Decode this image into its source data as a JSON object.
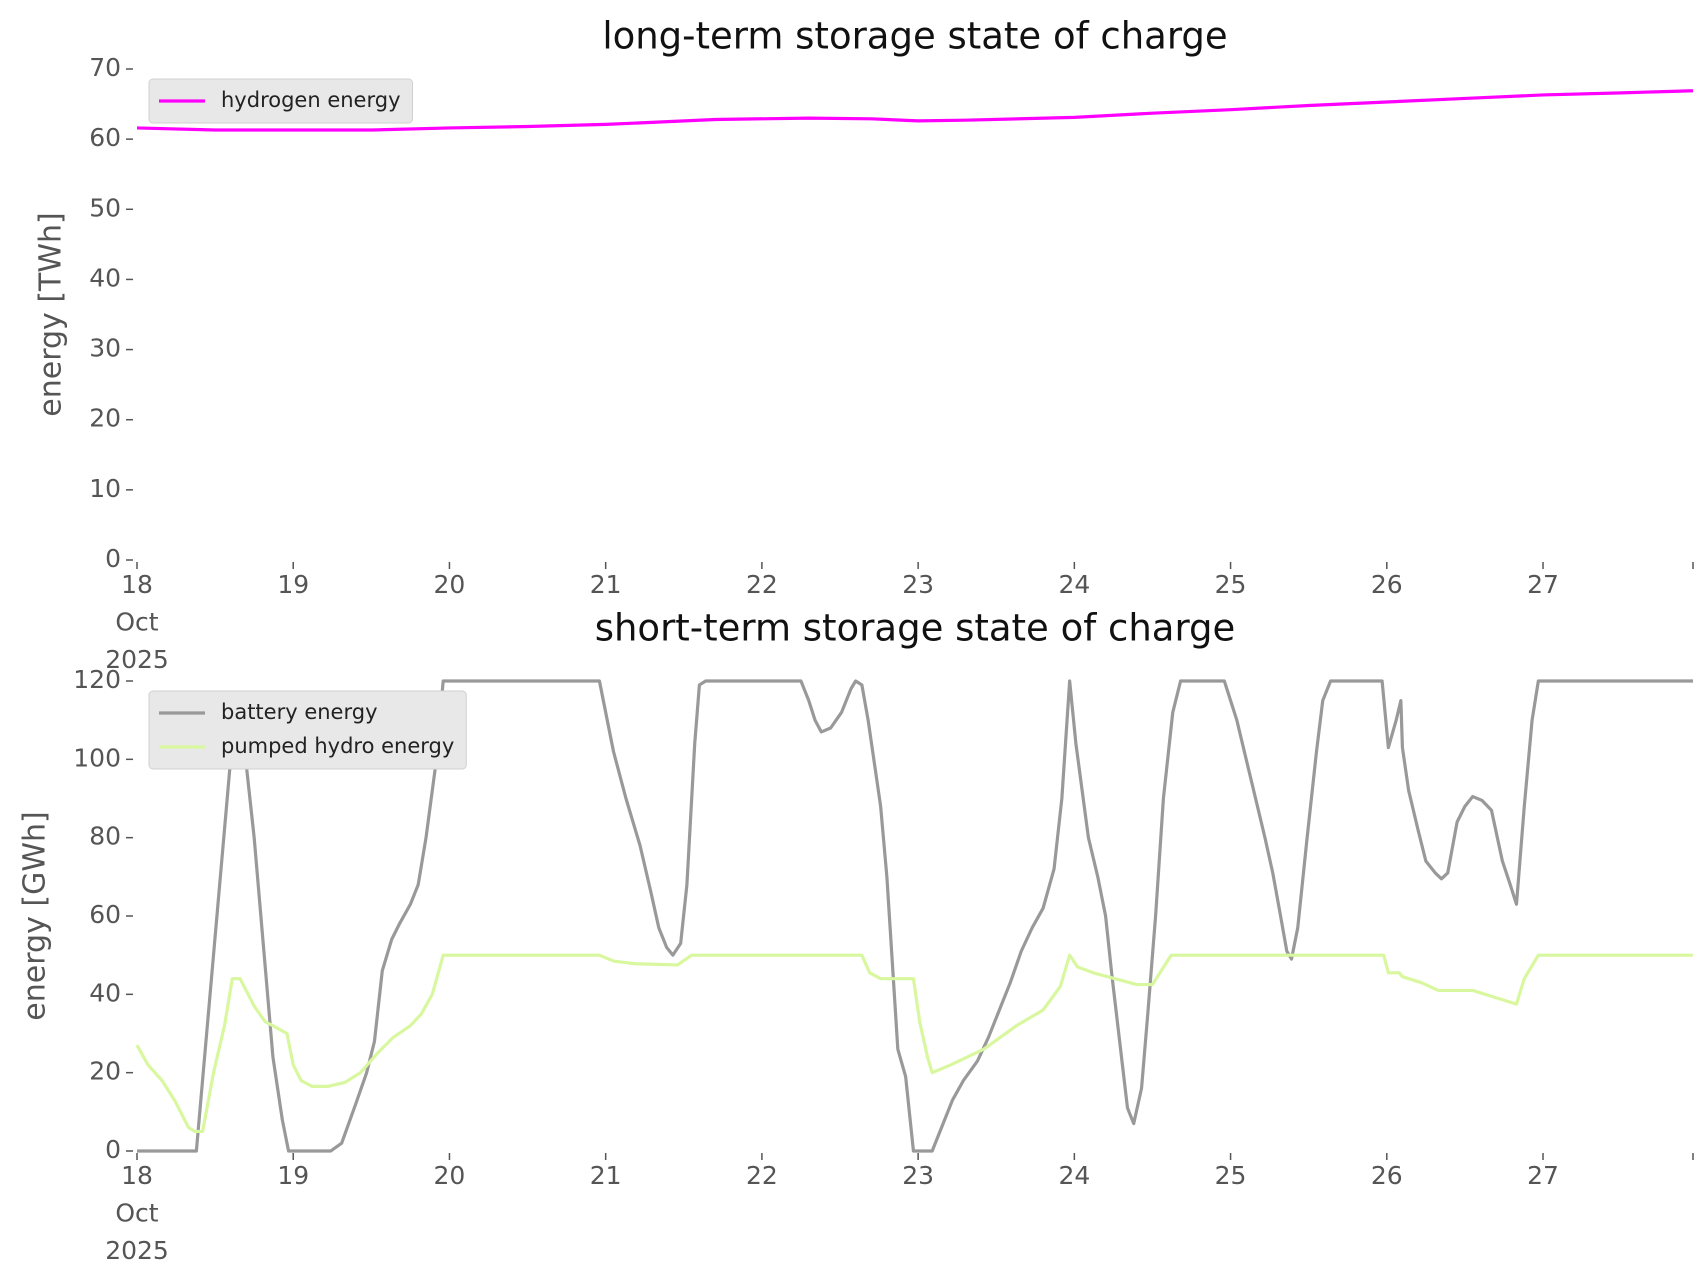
{
  "chart_data": [
    {
      "type": "line",
      "title": "long-term storage state of charge",
      "ylabel": "energy [TWh]",
      "xlim": [
        18,
        27.96
      ],
      "ylim": [
        0,
        70
      ],
      "xticks": [
        {
          "value": 18,
          "label": "18\nOct\n2025"
        },
        19,
        20,
        21,
        22,
        23,
        24,
        25,
        26,
        27
      ],
      "yticks": [
        0,
        10,
        20,
        30,
        40,
        50,
        60,
        70
      ],
      "legend": "upper left",
      "series": [
        {
          "name": "hydrogen energy",
          "color": "#ff00ff",
          "x": [
            18,
            18.5,
            19,
            19.5,
            20,
            20.5,
            21,
            21.4,
            21.7,
            22.3,
            22.7,
            23,
            23.3,
            24,
            24.5,
            25,
            25.5,
            26,
            26.5,
            27,
            27.5,
            27.96
          ],
          "values": [
            61.6,
            61.3,
            61.3,
            61.3,
            61.6,
            61.8,
            62.1,
            62.5,
            62.8,
            63.0,
            62.9,
            62.6,
            62.7,
            63.1,
            63.7,
            64.2,
            64.8,
            65.3,
            65.8,
            66.3,
            66.6,
            66.9
          ]
        }
      ]
    },
    {
      "type": "line",
      "title": "short-term storage state of charge",
      "ylabel": "energy [GWh]",
      "xlim": [
        18,
        27.96
      ],
      "ylim": [
        0,
        120
      ],
      "xticks": [
        {
          "value": 18,
          "label": "18\nOct\n2025"
        },
        19,
        20,
        21,
        22,
        23,
        24,
        25,
        26,
        27
      ],
      "yticks": [
        0,
        20,
        40,
        60,
        80,
        100,
        120
      ],
      "legend": "upper left",
      "series": [
        {
          "name": "battery energy",
          "color": "#999999",
          "x": [
            18,
            18.38,
            18.63,
            18.66,
            18.75,
            18.87,
            18.93,
            18.97,
            19.24,
            19.31,
            19.4,
            19.47,
            19.52,
            19.57,
            19.63,
            19.68,
            19.75,
            19.8,
            19.85,
            19.91,
            19.96,
            20.96,
            21.05,
            21.13,
            21.22,
            21.29,
            21.34,
            21.39,
            21.43,
            21.48,
            21.52,
            21.57,
            21.6,
            21.64,
            22.25,
            22.3,
            22.34,
            22.38,
            22.44,
            22.51,
            22.57,
            22.6,
            22.64,
            22.68,
            22.76,
            22.8,
            22.87,
            22.92,
            22.97,
            23.09,
            23.15,
            23.22,
            23.29,
            23.38,
            23.45,
            23.52,
            23.59,
            23.66,
            23.73,
            23.8,
            23.87,
            23.92,
            23.97,
            24.01,
            24.05,
            24.09,
            24.15,
            24.2,
            24.24,
            24.29,
            24.34,
            24.38,
            24.43,
            24.47,
            24.52,
            24.57,
            24.63,
            24.68,
            24.96,
            25.04,
            25.13,
            25.22,
            25.27,
            25.32,
            25.36,
            25.39,
            25.43,
            25.49,
            25.55,
            25.59,
            25.64,
            25.97,
            26.01,
            26.06,
            26.09,
            26.1,
            26.14,
            26.2,
            26.25,
            26.31,
            26.35,
            26.39,
            26.45,
            26.5,
            26.55,
            26.61,
            26.67,
            26.74,
            26.79,
            26.83,
            26.88,
            26.93,
            26.97,
            27.96
          ],
          "values": [
            0,
            0,
            114,
            113,
            80,
            24,
            8,
            0,
            0,
            2,
            12,
            20,
            28,
            46,
            54,
            58,
            63,
            68,
            80,
            98,
            120,
            120,
            102,
            90,
            78,
            66,
            57,
            52,
            50,
            53,
            68,
            104,
            119,
            120,
            120,
            115,
            110,
            107,
            108,
            112,
            118,
            120,
            119,
            110,
            88,
            70,
            26,
            19,
            0,
            0,
            6,
            13,
            18,
            23,
            29,
            36,
            43,
            51,
            57,
            62,
            72,
            90,
            120,
            104,
            92,
            80,
            70,
            60,
            45,
            28,
            11,
            7,
            16,
            35,
            60,
            90,
            112,
            120,
            120,
            110,
            95,
            80,
            71,
            60,
            51,
            49,
            57,
            80,
            102,
            115,
            120,
            120,
            103,
            110,
            115,
            103,
            92,
            82,
            74,
            71,
            69.5,
            71,
            84,
            88,
            90.5,
            89.5,
            87,
            74,
            68,
            63,
            88,
            110,
            120,
            120
          ]
        },
        {
          "name": "pumped hydro energy",
          "color": "#d8f79e",
          "x": [
            18,
            18.07,
            18.16,
            18.24,
            18.33,
            18.37,
            18.42,
            18.49,
            18.56,
            18.61,
            18.66,
            18.75,
            18.82,
            18.87,
            18.96,
            19,
            19.05,
            19.12,
            19.22,
            19.33,
            19.43,
            19.54,
            19.64,
            19.75,
            19.82,
            19.89,
            19.96,
            20.96,
            21.05,
            21.19,
            21.46,
            21.55,
            22.64,
            22.69,
            22.76,
            22.97,
            23.01,
            23.06,
            23.09,
            23.21,
            23.42,
            23.63,
            23.8,
            23.91,
            23.97,
            24.02,
            24.12,
            24.4,
            24.5,
            24.62,
            25.98,
            26.01,
            26.08,
            26.1,
            26.22,
            26.33,
            26.55,
            26.71,
            26.83,
            26.88,
            26.97,
            27.96
          ],
          "values": [
            27,
            22,
            18,
            13,
            6,
            5,
            5,
            20,
            32,
            44,
            44,
            37,
            33,
            32,
            30,
            22,
            18,
            16.5,
            16.5,
            17.5,
            20,
            25,
            29,
            32,
            35,
            40,
            50,
            50,
            48.5,
            47.8,
            47.5,
            50,
            50,
            45.5,
            44,
            44,
            33,
            24,
            20,
            22,
            26,
            32,
            36,
            42,
            50,
            47,
            45.5,
            42.5,
            42.5,
            50,
            50,
            45.5,
            45.5,
            44.5,
            43,
            41,
            41,
            39,
            37.5,
            44,
            50,
            50
          ]
        }
      ]
    }
  ]
}
